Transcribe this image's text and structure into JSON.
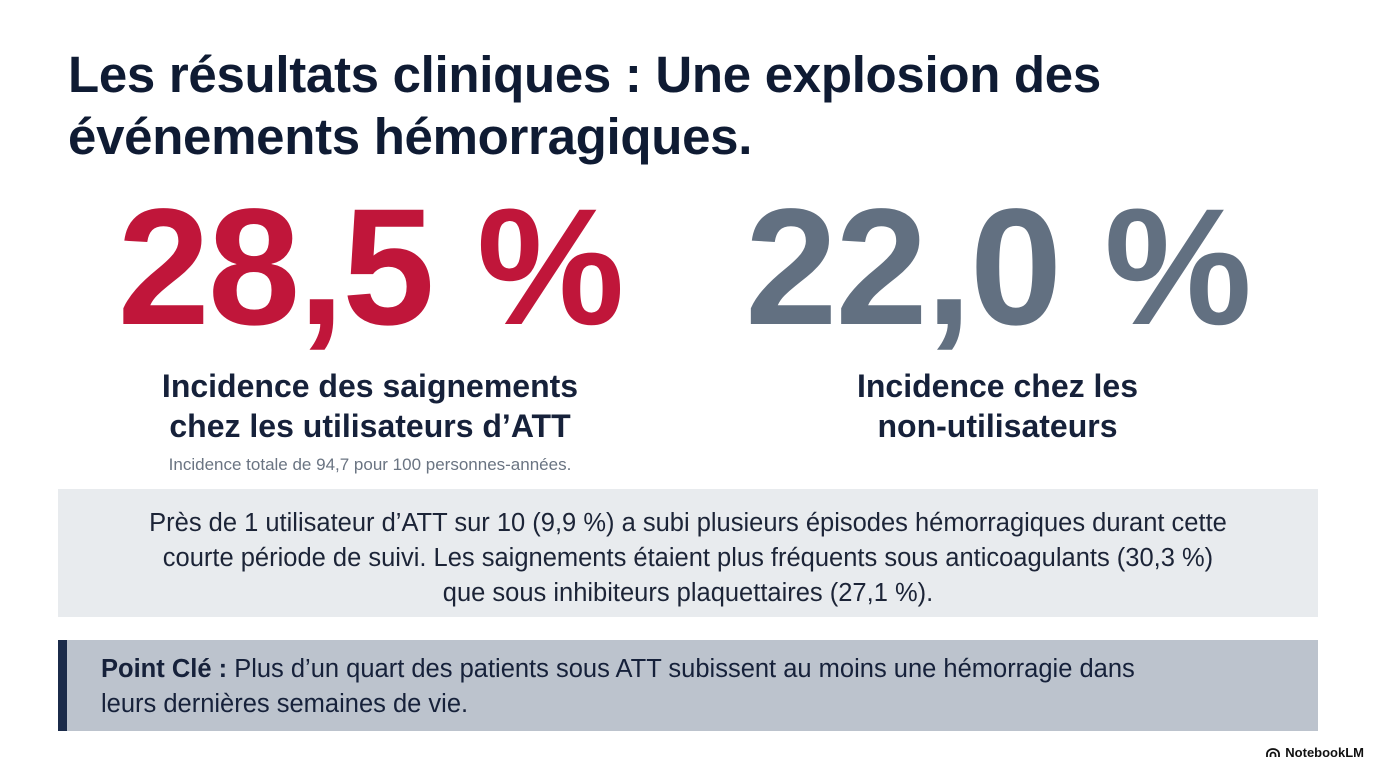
{
  "title": {
    "line1": "Les résultats cliniques : Une explosion des",
    "line2": "événements hémorragiques."
  },
  "stats": {
    "left": {
      "value": "28,5 %",
      "label_line1": "Incidence des saignements",
      "label_line2": "chez les utilisateurs d’ATT",
      "sub": "Incidence totale de 94,7 pour 100 personnes-années.",
      "color": "#c0163a"
    },
    "right": {
      "value": "22,0 %",
      "label_line1": "Incidence chez les",
      "label_line2": "non-utilisateurs",
      "color": "#627081"
    }
  },
  "info": {
    "line1": "Près de 1 utilisateur d’ATT sur 10 (9,9 %) a subi plusieurs épisodes hémorragiques durant cette",
    "line2": "courte période de suivi. Les saignements étaient plus fréquents sous anticoagulants (30,3 %)",
    "line3": "que sous inhibiteurs plaquettaires (27,1 %)."
  },
  "key_point": {
    "label": "Point Clé :",
    "text_line1": "Plus d’un quart des patients sous ATT subissent au moins une hémorragie dans",
    "text_line2": "leurs dernières semaines de vie."
  },
  "brand": {
    "name": "NotebookLM",
    "icon": "notebooklm-logo-icon"
  }
}
